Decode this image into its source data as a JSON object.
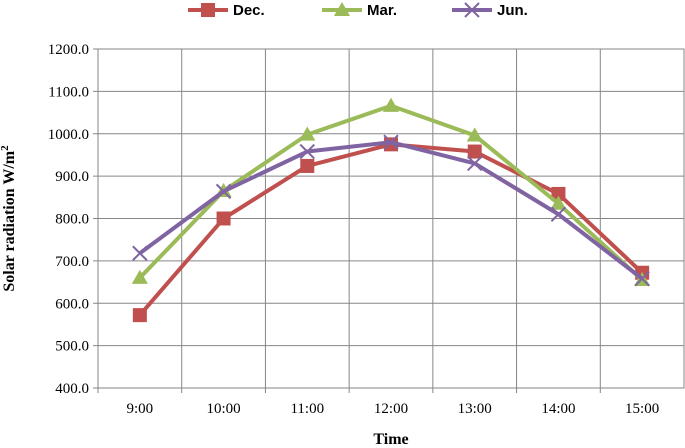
{
  "chart_data": {
    "type": "line",
    "title": "",
    "xlabel": "Time",
    "ylabel": "Solar radiation W/m",
    "ylabel_superscript": "2",
    "categories": [
      "9:00",
      "10:00",
      "11:00",
      "12:00",
      "13:00",
      "14:00",
      "15:00"
    ],
    "ylim": [
      400,
      1200
    ],
    "yticks": [
      "400.0",
      "500.0",
      "600.0",
      "700.0",
      "800.0",
      "900.0",
      "1000.0",
      "1100.0",
      "1200.0"
    ],
    "grid": true,
    "legend_position": "top",
    "series": [
      {
        "name": "Dec.",
        "color": "#c0504d",
        "marker": "square",
        "values": [
          572,
          800,
          924,
          975,
          958,
          858,
          672
        ]
      },
      {
        "name": "Mar.",
        "color": "#9bbb59",
        "marker": "triangle",
        "values": [
          660,
          865,
          998,
          1066,
          996,
          835,
          655
        ]
      },
      {
        "name": "Jun.",
        "color": "#8064a2",
        "marker": "x",
        "values": [
          718,
          864,
          958,
          980,
          930,
          810,
          658
        ]
      }
    ]
  }
}
